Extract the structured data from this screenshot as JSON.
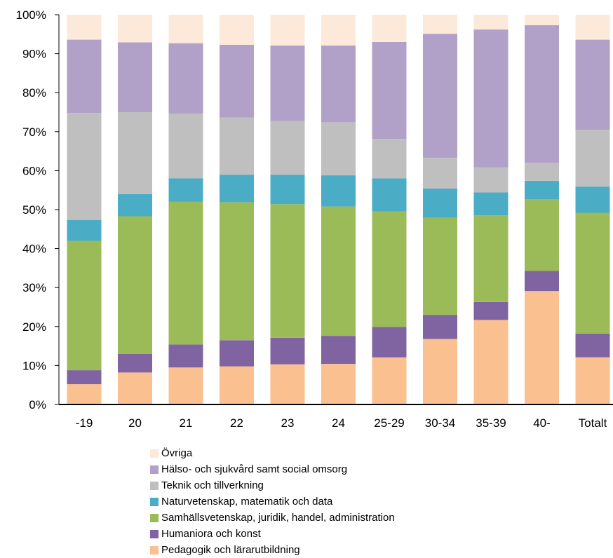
{
  "chart_data": {
    "type": "bar",
    "stacked": true,
    "normalized": true,
    "categories": [
      "-19",
      "20",
      "21",
      "22",
      "23",
      "24",
      "25-29",
      "30-34",
      "35-39",
      "40-",
      "Totalt"
    ],
    "ylim": [
      0,
      100
    ],
    "yticks": [
      "0%",
      "10%",
      "20%",
      "30%",
      "40%",
      "50%",
      "60%",
      "70%",
      "80%",
      "90%",
      "100%"
    ],
    "grid": false,
    "legend_position": "bottom",
    "series": [
      {
        "name": "Pedagogik och lärarutbildning",
        "color": "#FAC090",
        "values": [
          5.2,
          8.2,
          9.5,
          9.8,
          10.3,
          10.4,
          12.1,
          16.8,
          21.7,
          29.1,
          12.1
        ]
      },
      {
        "name": "Humaniora och konst",
        "color": "#8064A2",
        "values": [
          3.6,
          4.8,
          5.9,
          6.7,
          6.8,
          7.2,
          7.8,
          6.2,
          4.6,
          5.2,
          6.1
        ]
      },
      {
        "name": "Samhällsvetenskap, juridik, handel, administration",
        "color": "#9BBB59",
        "values": [
          33.2,
          35.3,
          36.6,
          35.4,
          34.3,
          33.2,
          29.6,
          24.9,
          22.2,
          18.4,
          31.0
        ]
      },
      {
        "name": "Naturvetenskap, matematik och data",
        "color": "#4BACC6",
        "values": [
          5.3,
          5.7,
          6.0,
          7.0,
          7.5,
          8.0,
          8.5,
          7.5,
          5.9,
          4.7,
          6.7
        ]
      },
      {
        "name": "Teknik och tillverkning",
        "color": "#BFBFBF",
        "values": [
          27.5,
          21.0,
          16.6,
          14.7,
          13.8,
          13.6,
          10.1,
          7.9,
          6.4,
          4.6,
          14.6
        ]
      },
      {
        "name": "Hälso- och sjukvård samt social omsorg",
        "color": "#B1A0C7",
        "values": [
          18.8,
          17.9,
          18.1,
          18.7,
          19.4,
          19.7,
          24.9,
          31.8,
          35.4,
          35.3,
          23.1
        ]
      },
      {
        "name": "Övriga",
        "color": "#FDE9D9",
        "values": [
          6.4,
          7.1,
          7.3,
          7.7,
          7.9,
          7.9,
          7.0,
          4.9,
          3.8,
          2.7,
          6.4
        ]
      }
    ]
  },
  "legend_order": [
    6,
    5,
    4,
    3,
    2,
    1,
    0
  ]
}
